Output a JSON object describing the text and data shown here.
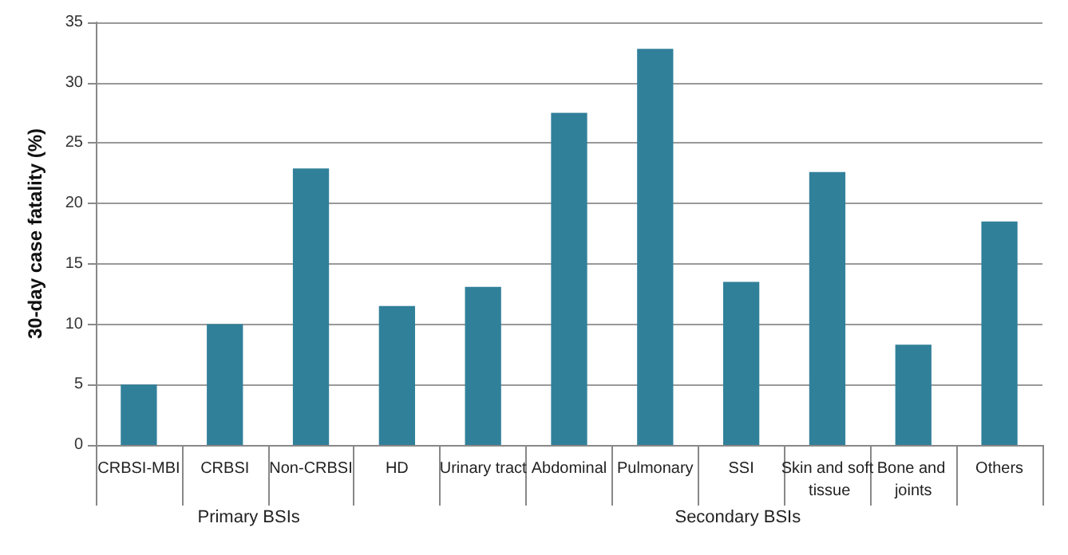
{
  "chart_data": {
    "type": "bar",
    "ylabel": "30-day case fatality (%)",
    "categories": [
      "CRBSI-MBI",
      "CRBSI",
      "Non-CRBSI",
      "HD",
      "Urinary tract",
      "Abdominal",
      "Pulmonary",
      "SSI",
      "Skin and soft tissue",
      "Bone and joints",
      "Others"
    ],
    "values": [
      5,
      10,
      22.9,
      11.5,
      13.1,
      27.5,
      32.8,
      13.5,
      22.6,
      8.3,
      18.5
    ],
    "color": "#31809a",
    "ylim": [
      0,
      35
    ],
    "yticks": [
      0,
      5,
      10,
      15,
      20,
      25,
      30,
      35
    ],
    "grid": "y",
    "annotations": [
      "Primary BSIs",
      "Secondary BSIs"
    ]
  }
}
